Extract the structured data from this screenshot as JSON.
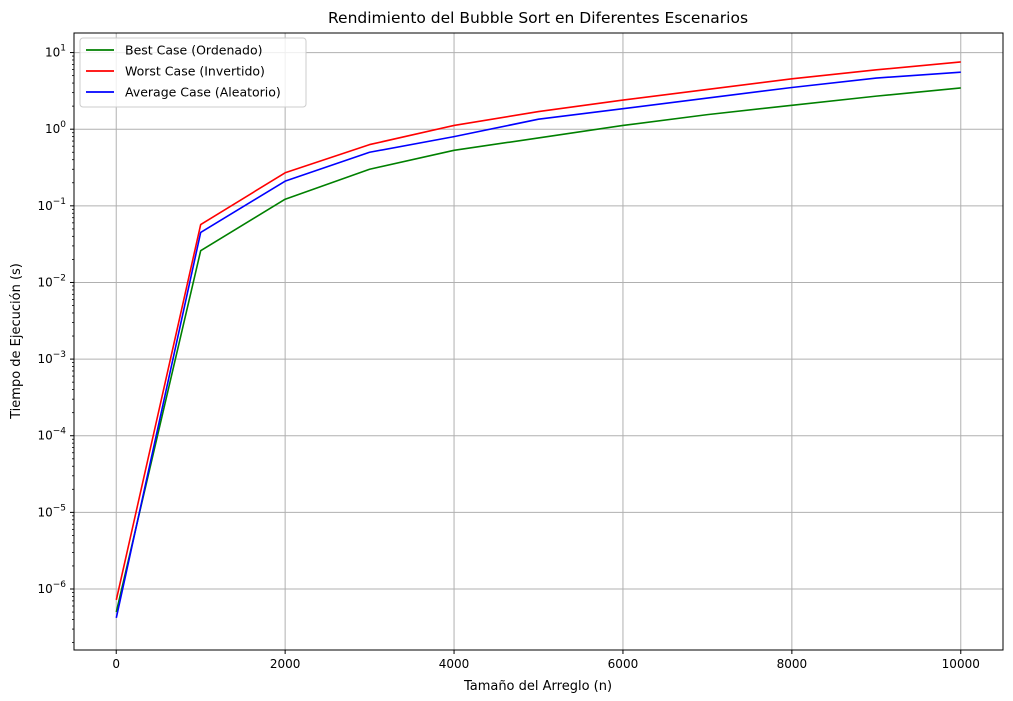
{
  "chart_data": {
    "type": "line",
    "title": "Rendimiento del Bubble Sort en Diferentes Escenarios",
    "xlabel": "Tamaño del Arreglo (n)",
    "ylabel": "Tiempo de Ejecución (s)",
    "y_scale": "log",
    "xlim": [
      -500,
      10500
    ],
    "ylim": [
      1.6e-07,
      18
    ],
    "x_ticks": [
      0,
      2000,
      4000,
      6000,
      8000,
      10000
    ],
    "x_tick_labels": [
      "0",
      "2000",
      "4000",
      "6000",
      "8000",
      "10000"
    ],
    "y_ticks": [
      1e-06,
      1e-05,
      0.0001,
      0.001,
      0.01,
      0.1,
      1,
      10
    ],
    "y_tick_labels": [
      {
        "base": "10",
        "exp": "−6"
      },
      {
        "base": "10",
        "exp": "−5"
      },
      {
        "base": "10",
        "exp": "−4"
      },
      {
        "base": "10",
        "exp": "−3"
      },
      {
        "base": "10",
        "exp": "−2"
      },
      {
        "base": "10",
        "exp": "−1"
      },
      {
        "base": "10",
        "exp": "0"
      },
      {
        "base": "10",
        "exp": "1"
      }
    ],
    "grid": true,
    "legend_position": "top-left",
    "x": [
      1,
      1000,
      2000,
      3000,
      4000,
      5000,
      6000,
      7000,
      8000,
      9000,
      10000
    ],
    "series": [
      {
        "name": "Best Case (Ordenado)",
        "color": "#008000",
        "values": [
          5e-07,
          0.026,
          0.122,
          0.3,
          0.53,
          0.77,
          1.12,
          1.55,
          2.05,
          2.7,
          3.45
        ]
      },
      {
        "name": "Worst Case (Invertido)",
        "color": "#ff0000",
        "values": [
          7.2e-07,
          0.057,
          0.27,
          0.63,
          1.12,
          1.7,
          2.4,
          3.3,
          4.55,
          5.95,
          7.55
        ]
      },
      {
        "name": "Average Case (Aleatorio)",
        "color": "#0000ff",
        "values": [
          4.2e-07,
          0.045,
          0.21,
          0.5,
          0.8,
          1.35,
          1.85,
          2.55,
          3.5,
          4.65,
          5.55
        ]
      }
    ]
  }
}
